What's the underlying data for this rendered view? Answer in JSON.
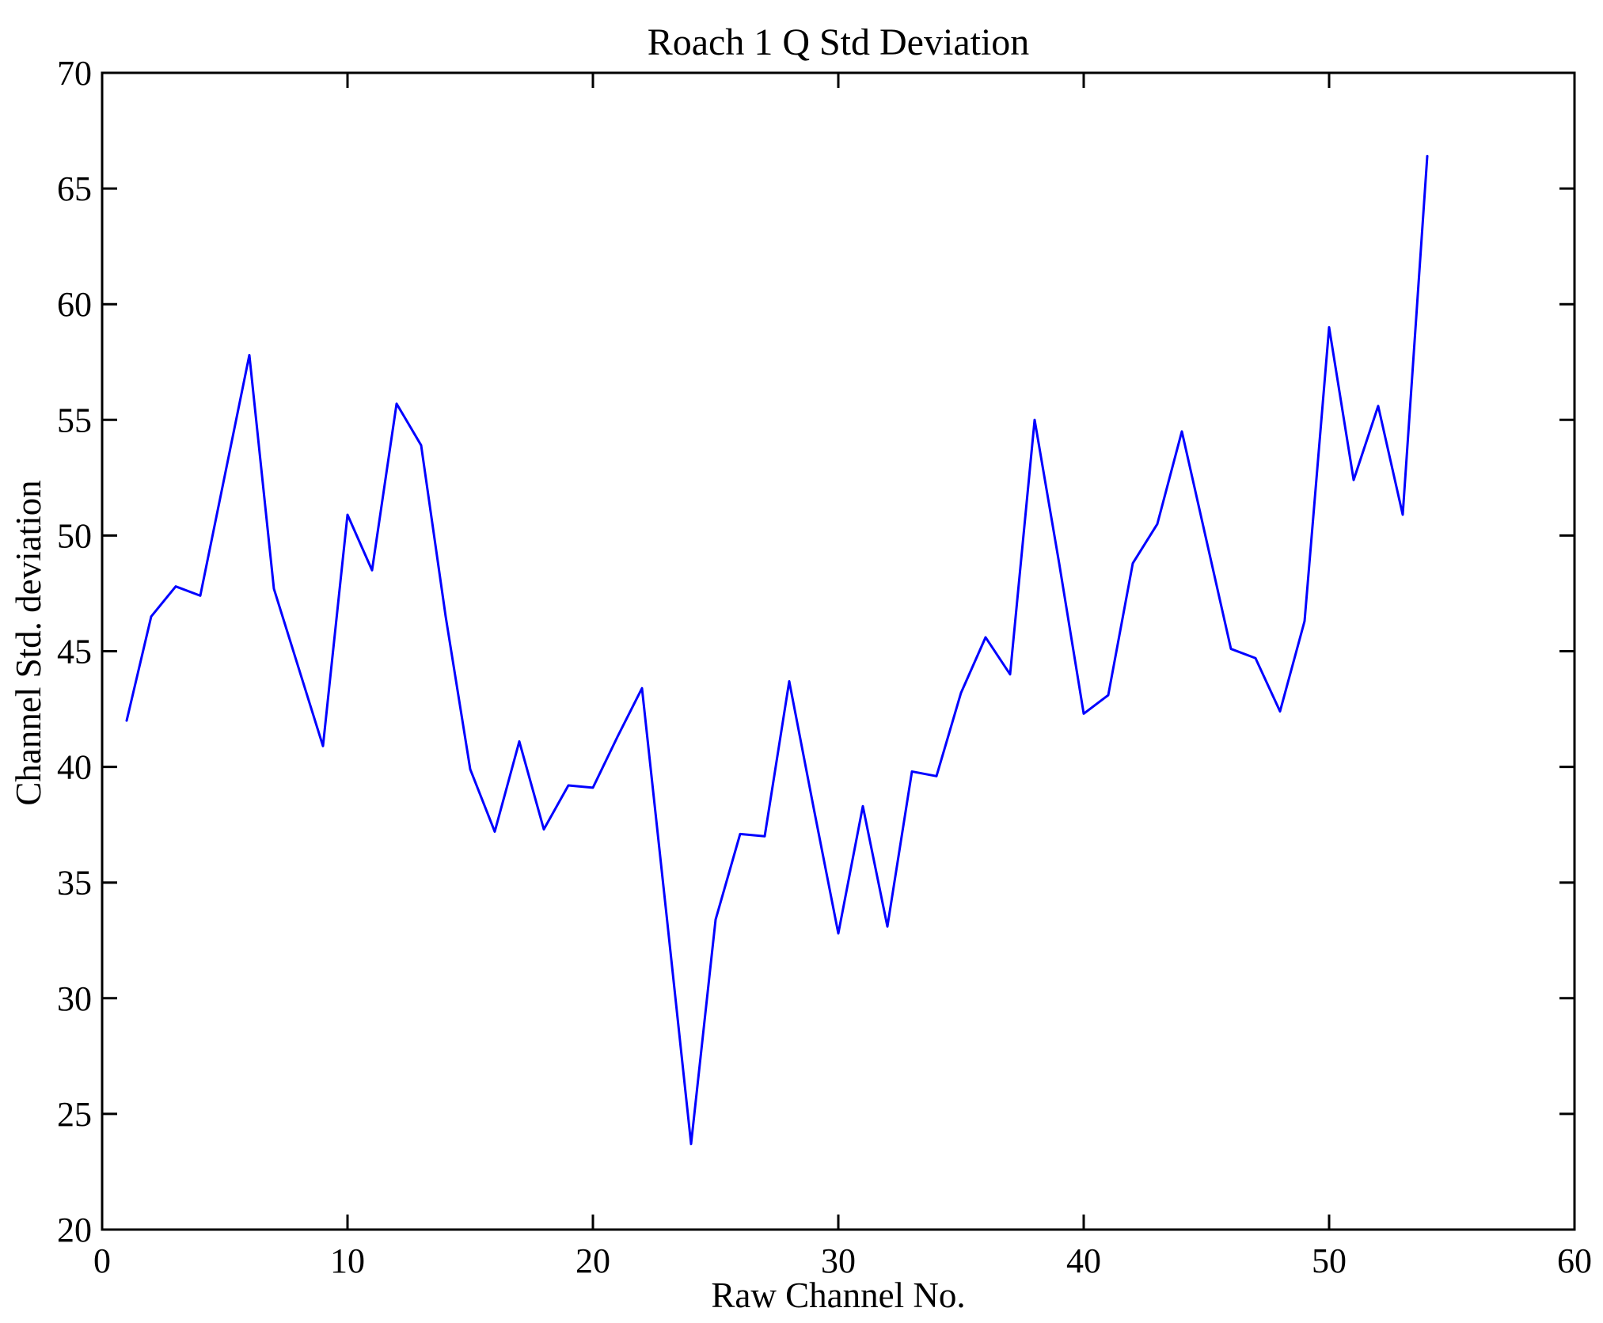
{
  "chart_data": {
    "type": "line",
    "title": "Roach 1 Q Std Deviation",
    "xlabel": "Raw Channel No.",
    "ylabel": "Channel Std. deviation",
    "xlim": [
      0,
      60
    ],
    "ylim": [
      20,
      70
    ],
    "xticks": [
      0,
      10,
      20,
      30,
      40,
      50,
      60
    ],
    "yticks": [
      20,
      25,
      30,
      35,
      40,
      45,
      50,
      55,
      60,
      65,
      70
    ],
    "grid": false,
    "legend": "none",
    "line_color": "#0000FF",
    "frame_color": "#000000",
    "background_color": "#FFFFFF",
    "series": [
      {
        "name": "Channel Std deviation vs Raw Channel No",
        "x": [
          1,
          2,
          3,
          4,
          5,
          6,
          7,
          8,
          9,
          10,
          11,
          12,
          13,
          14,
          15,
          16,
          17,
          18,
          19,
          20,
          21,
          22,
          23,
          24,
          25,
          26,
          27,
          28,
          29,
          30,
          31,
          32,
          33,
          34,
          35,
          36,
          37,
          38,
          39,
          40,
          41,
          42,
          43,
          44,
          45,
          46,
          47,
          48,
          49,
          50,
          51,
          52,
          53,
          54
        ],
        "values": [
          42.0,
          46.5,
          47.8,
          47.4,
          52.6,
          57.8,
          47.7,
          44.3,
          40.9,
          50.9,
          48.5,
          55.7,
          53.9,
          46.5,
          39.9,
          37.2,
          41.1,
          37.3,
          39.2,
          39.1,
          41.3,
          43.4,
          33.6,
          23.7,
          33.4,
          37.1,
          37.0,
          43.7,
          38.2,
          32.8,
          38.3,
          33.1,
          39.8,
          39.6,
          43.2,
          45.6,
          44.0,
          55.0,
          48.8,
          42.3,
          43.1,
          48.8,
          50.5,
          54.5,
          49.8,
          45.1,
          44.7,
          42.4,
          46.3,
          59.0,
          52.4,
          55.6,
          50.9,
          66.4
        ]
      }
    ]
  }
}
